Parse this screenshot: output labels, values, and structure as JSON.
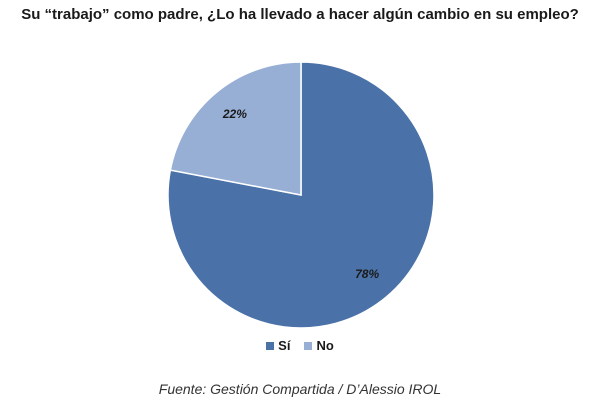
{
  "chart_data": {
    "type": "pie",
    "title": "Su “trabajo” como padre, ¿Lo ha llevado a hacer algún cambio en su empleo?",
    "categories": [
      "Sí",
      "No"
    ],
    "values": [
      78,
      22
    ],
    "data_labels": [
      "78%",
      "22%"
    ],
    "colors": [
      "#4a72a8",
      "#97aed5"
    ],
    "legend_position": "bottom",
    "source": "Fuente: Gestión Compartida / D’Alessio IROL"
  }
}
